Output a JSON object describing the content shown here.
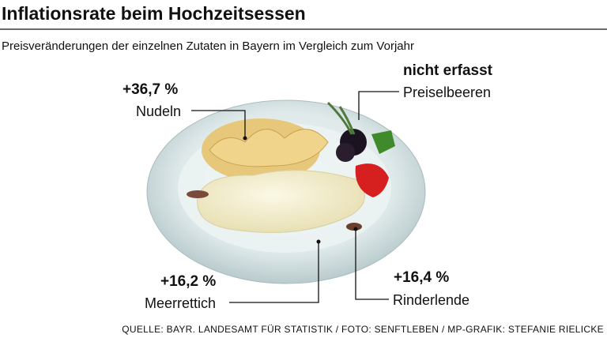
{
  "header": {
    "title": "Inflationsrate beim Hochzeitsessen",
    "subtitle": "Preisveränderungen der einzelnen Zutaten in Bayern im Vergleich zum Vorjahr"
  },
  "callouts": [
    {
      "value": "+36,7 %",
      "label": "Nudeln"
    },
    {
      "value": "nicht erfasst",
      "label": "Preiselbeeren"
    },
    {
      "value": "+16,2 %",
      "label": "Meerrettich"
    },
    {
      "value": "+16,4 %",
      "label": "Rinderlende"
    }
  ],
  "source": "QUELLE: BAYR. LANDESAMT FÜR STATISTIK / FOTO: SENFTLEBEN / MP-GRAFIK: STEFANIE RIELICKE"
}
